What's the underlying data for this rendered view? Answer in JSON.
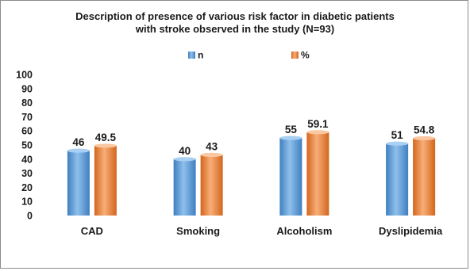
{
  "chart_data": {
    "type": "bar",
    "title_lines": [
      "Description of presence of various risk factor in diabetic patients",
      "with stroke observed in the study (N=93)"
    ],
    "categories": [
      "CAD",
      "Smoking",
      "Alcoholism",
      "Dyslipidemia"
    ],
    "series": [
      {
        "name": "n",
        "values": [
          46,
          40,
          55,
          51
        ],
        "labels": [
          "46",
          "40",
          "55",
          "51"
        ],
        "color": "#5b9bd5"
      },
      {
        "name": "%",
        "values": [
          49.5,
          43,
          59.1,
          54.8
        ],
        "labels": [
          "49.5",
          "43",
          "59.1",
          "54.8"
        ],
        "color": "#ed7d31"
      }
    ],
    "ylim": [
      0,
      100
    ],
    "yticks": [
      0,
      10,
      20,
      30,
      40,
      50,
      60,
      70,
      80,
      90,
      100
    ],
    "grid": false,
    "legend": "top-center"
  }
}
